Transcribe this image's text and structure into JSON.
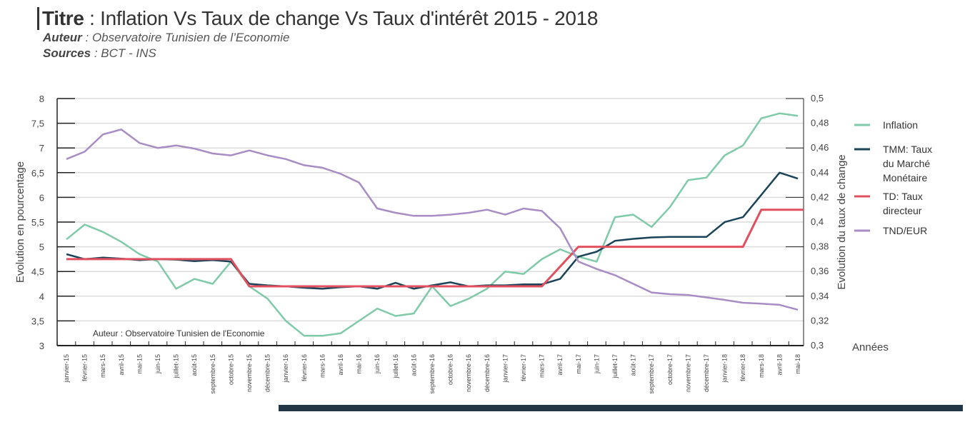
{
  "header": {
    "title_label": "Titre",
    "title": "Inflation Vs Taux de change Vs Taux d'intérêt  2015 - 2018",
    "author_label": "Auteur",
    "author": "Observatoire Tunisien de l’Economie",
    "sources_label": "Sources",
    "sources": "BCT - INS"
  },
  "chart_data": {
    "type": "line",
    "title": "Inflation Vs Taux de change Vs Taux d'intérêt  2015 - 2018",
    "xlabel": "Années",
    "ylabel": "Evolution en pourcentage",
    "y2label": "Evolution du taux de change",
    "ylim": [
      3,
      8
    ],
    "y2lim": [
      0.3,
      0.5
    ],
    "yticks": [
      "3",
      "3,5",
      "4",
      "4,5",
      "5",
      "5,5",
      "6",
      "6,5",
      "7",
      "7,5",
      "8"
    ],
    "y2ticks": [
      "0,3",
      "0,32",
      "0,34",
      "0,36",
      "0,38",
      "0,4",
      "0,42",
      "0,44",
      "0,46",
      "0,48",
      "0,5"
    ],
    "annotation": "Auteur : Observatoire Tunisien de l'Economie",
    "legend_position": "right",
    "categories": [
      "janvier-15",
      "février-15",
      "mars-15",
      "avril-15",
      "mai-15",
      "juin-15",
      "juillet-15",
      "août-15",
      "septembre-15",
      "octobre-15",
      "novembre-15",
      "décembre-15",
      "janvier-16",
      "février-16",
      "mars-16",
      "avril-16",
      "mai-16",
      "juin-16",
      "juillet-16",
      "août-16",
      "septembre-16",
      "octobre-16",
      "novembre-16",
      "décembre-16",
      "janvier-17",
      "février-17",
      "mars-17",
      "avril-17",
      "mai-17",
      "juin-17",
      "juillet-17",
      "août-17",
      "septembre-17",
      "octobre-17",
      "novembre-17",
      "décembre-17",
      "janvier-18",
      "février-18",
      "mars-18",
      "avril-18",
      "mai-18"
    ],
    "series": [
      {
        "name": "Inflation",
        "axis": "left",
        "color": "#7fcaa8",
        "values": [
          5.15,
          5.45,
          5.3,
          5.1,
          4.85,
          4.7,
          4.15,
          4.35,
          4.25,
          4.7,
          4.2,
          3.95,
          3.5,
          3.2,
          3.2,
          3.25,
          3.5,
          3.75,
          3.6,
          3.65,
          4.2,
          3.8,
          3.95,
          4.15,
          4.5,
          4.45,
          4.75,
          4.95,
          4.8,
          4.7,
          5.6,
          5.65,
          5.4,
          5.8,
          6.35,
          6.4,
          6.85,
          7.05,
          7.6,
          7.7,
          7.65
        ]
      },
      {
        "name": "TMM: Taux du Marché Monétaire",
        "axis": "left",
        "color": "#1b4459",
        "values": [
          4.85,
          4.75,
          4.78,
          4.76,
          4.73,
          4.75,
          4.74,
          4.71,
          4.73,
          4.7,
          4.25,
          4.22,
          4.2,
          4.17,
          4.15,
          4.18,
          4.2,
          4.15,
          4.27,
          4.15,
          4.22,
          4.28,
          4.2,
          4.22,
          4.22,
          4.24,
          4.24,
          4.35,
          4.8,
          4.9,
          5.12,
          5.16,
          5.19,
          5.2,
          5.2,
          5.2,
          5.5,
          5.6,
          6.05,
          6.5,
          6.38
        ]
      },
      {
        "name": "TD: Taux directeur",
        "axis": "left",
        "color": "#e0505f",
        "values": [
          4.75,
          4.75,
          4.75,
          4.75,
          4.75,
          4.75,
          4.75,
          4.75,
          4.75,
          4.75,
          4.2,
          4.2,
          4.2,
          4.2,
          4.2,
          4.2,
          4.2,
          4.2,
          4.2,
          4.2,
          4.2,
          4.2,
          4.2,
          4.2,
          4.2,
          4.2,
          4.2,
          4.6,
          5.0,
          5.0,
          5.0,
          5.0,
          5.0,
          5.0,
          5.0,
          5.0,
          5.0,
          5.0,
          5.75,
          5.75,
          5.75
        ]
      },
      {
        "name": "TND/EUR",
        "axis": "right",
        "color": "#a88dc4",
        "values": [
          0.451,
          0.457,
          0.471,
          0.475,
          0.464,
          0.46,
          0.462,
          0.4595,
          0.4555,
          0.454,
          0.458,
          0.454,
          0.451,
          0.446,
          0.444,
          0.439,
          0.432,
          0.411,
          0.4075,
          0.405,
          0.405,
          0.406,
          0.4075,
          0.41,
          0.406,
          0.411,
          0.409,
          0.395,
          0.368,
          0.362,
          0.357,
          0.35,
          0.343,
          0.3416,
          0.341,
          0.339,
          0.337,
          0.3347,
          0.334,
          0.333,
          0.329
        ]
      }
    ]
  }
}
